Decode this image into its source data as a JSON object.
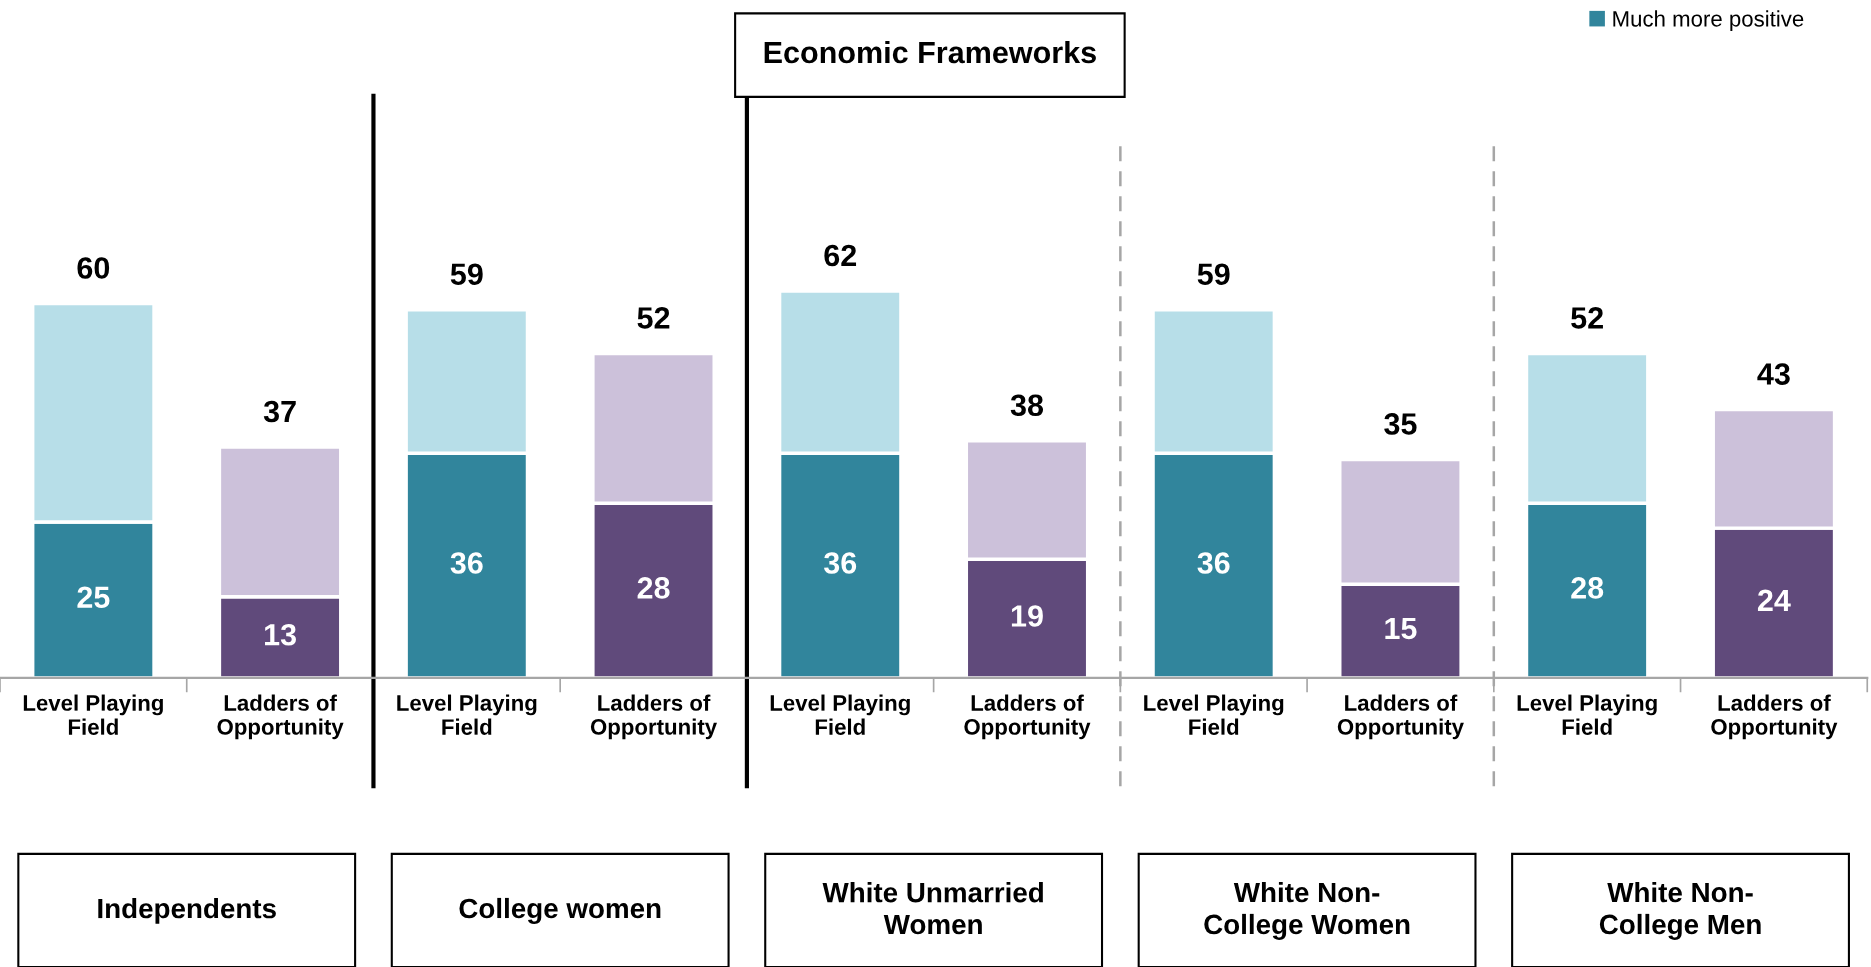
{
  "chart_data": {
    "type": "bar",
    "title": "Economic Frameworks",
    "stacked": true,
    "categories": [
      "Level Playing\nField",
      "Ladders of\nOpportunity",
      "Level Playing\nField",
      "Ladders of\nOpportunity",
      "Level Playing\nField",
      "Ladders of\nOpportunity",
      "Level Playing\nField",
      "Ladders of\nOpportunity",
      "Level Playing\nField",
      "Ladders of\nOpportunity"
    ],
    "series": [
      {
        "name": "Much more positive",
        "color": "#31859c",
        "colors": [
          "#31859c",
          "#604a7b",
          "#31859c",
          "#604a7b",
          "#31859c",
          "#604a7b",
          "#31859c",
          "#604a7b",
          "#31859c",
          "#604a7b"
        ],
        "values": [
          25,
          13,
          36,
          28,
          36,
          19,
          36,
          15,
          28,
          24
        ],
        "value_labels": [
          "25",
          "13",
          "36",
          "28",
          "36",
          "19",
          "36",
          "15",
          "28",
          "24"
        ]
      },
      {
        "colors": [
          "#b7dee8",
          "#ccc1da",
          "#b7dee8",
          "#ccc1da",
          "#b7dee8",
          "#ccc1da",
          "#b7dee8",
          "#ccc1da",
          "#b7dee8",
          "#ccc1da"
        ],
        "values": [
          35,
          24,
          23,
          24,
          26,
          19,
          23,
          20,
          24,
          19
        ]
      }
    ],
    "totals": [
      "60",
      "37",
      "59",
      "52",
      "62",
      "38",
      "59",
      "35",
      "52",
      "43"
    ],
    "annotations": [
      "Independents",
      "College women",
      "White Unmarried\nWomen",
      "White Non-\nCollege Women",
      "White Non-\nCollege Men"
    ],
    "legend": "top right",
    "tick_labels": "x",
    "grid": false
  }
}
